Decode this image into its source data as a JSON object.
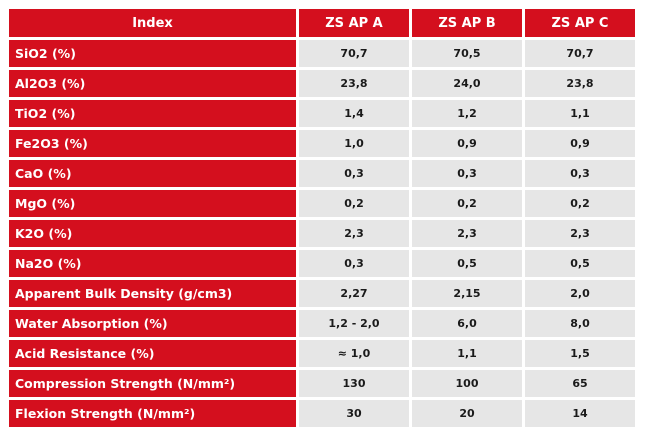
{
  "table": {
    "headers": [
      "Index",
      "ZS AP A",
      "ZS AP B",
      "ZS AP C"
    ],
    "rows": [
      {
        "label": "SiO2 (%)",
        "values": [
          "70,7",
          "70,5",
          "70,7"
        ]
      },
      {
        "label": "Al2O3 (%)",
        "values": [
          "23,8",
          "24,0",
          "23,8"
        ]
      },
      {
        "label": "TiO2 (%)",
        "values": [
          "1,4",
          "1,2",
          "1,1"
        ]
      },
      {
        "label": "Fe2O3 (%)",
        "values": [
          "1,0",
          "0,9",
          "0,9"
        ]
      },
      {
        "label": "CaO (%)",
        "values": [
          "0,3",
          "0,3",
          "0,3"
        ]
      },
      {
        "label": "MgO (%)",
        "values": [
          "0,2",
          "0,2",
          "0,2"
        ]
      },
      {
        "label": "K2O (%)",
        "values": [
          "2,3",
          "2,3",
          "2,3"
        ]
      },
      {
        "label": "Na2O (%)",
        "values": [
          "0,3",
          "0,5",
          "0,5"
        ]
      },
      {
        "label": "Apparent Bulk Density (g/cm3)",
        "values": [
          "2,27",
          "2,15",
          "2,0"
        ]
      },
      {
        "label": "Water Absorption (%)",
        "values": [
          "1,2 - 2,0",
          "6,0",
          "8,0"
        ]
      },
      {
        "label": "Acid Resistance (%)",
        "values": [
          "≈ 1,0",
          "1,1",
          "1,5"
        ]
      },
      {
        "label": "Compression Strength (N/mm²)",
        "values": [
          "130",
          "100",
          "65"
        ]
      },
      {
        "label": "Flexion Strength (N/mm²)",
        "values": [
          "30",
          "20",
          "14"
        ]
      }
    ]
  },
  "colors": {
    "header_bg": "#d40f1e",
    "cell_bg": "#e6e6e6",
    "text": "#1a1a1a",
    "header_text": "#ffffff"
  }
}
